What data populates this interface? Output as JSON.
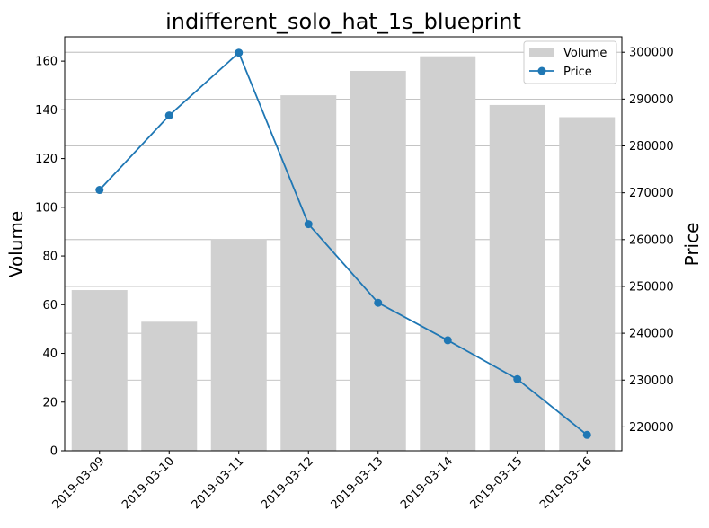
{
  "chart_data": {
    "type": "bar+line",
    "title": "indifferent_solo_hat_1s_blueprint",
    "categories": [
      "2019-03-09",
      "2019-03-10",
      "2019-03-11",
      "2019-03-12",
      "2019-03-13",
      "2019-03-14",
      "2019-03-15",
      "2019-03-16"
    ],
    "series": [
      {
        "name": "Volume",
        "type": "bar",
        "axis": "left",
        "color": "#d0d0d0",
        "values": [
          66,
          53,
          87,
          146,
          156,
          162,
          142,
          137
        ]
      },
      {
        "name": "Price",
        "type": "line",
        "axis": "right",
        "color": "#1f77b4",
        "marker": "circle",
        "values": [
          270600,
          286500,
          299900,
          263300,
          246500,
          238500,
          230200,
          218300
        ]
      }
    ],
    "ylabel_left": "Volume",
    "ylabel_right": "Price",
    "ylim_left": [
      0,
      170
    ],
    "ylim_right": [
      214900,
      303300
    ],
    "yticks_left": [
      0,
      20,
      40,
      60,
      80,
      100,
      120,
      140,
      160
    ],
    "yticks_right": [
      220000,
      230000,
      240000,
      250000,
      260000,
      270000,
      280000,
      290000,
      300000
    ],
    "grid": "horizontal-right-axis",
    "legend_position": "top-right"
  }
}
